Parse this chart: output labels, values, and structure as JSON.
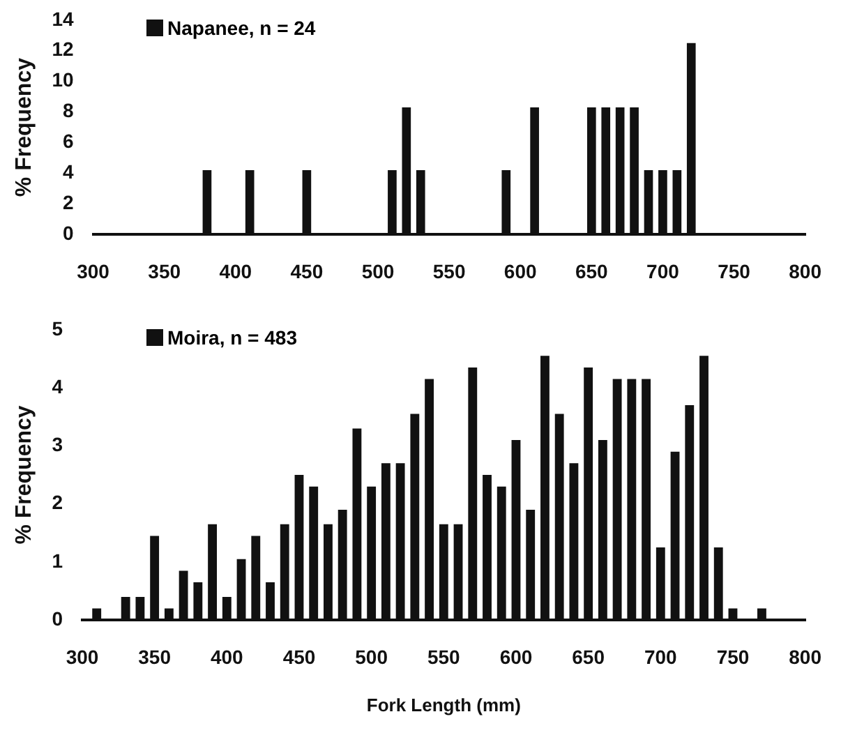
{
  "chart_data": [
    {
      "type": "bar",
      "ylabel": "% Frequency",
      "legend": "top left",
      "grid": false,
      "xlim": [
        300,
        800
      ],
      "xticks": [
        300,
        350,
        400,
        450,
        500,
        550,
        600,
        650,
        700,
        750,
        800
      ],
      "ylim": [
        0,
        14
      ],
      "yticks": [
        0,
        2,
        4,
        6,
        8,
        10,
        12,
        14
      ],
      "x": [
        380,
        410,
        450,
        510,
        520,
        530,
        590,
        610,
        650,
        660,
        670,
        680,
        690,
        700,
        710,
        720
      ],
      "series": [
        {
          "name": "Napanee, n = 24",
          "color": "#111111",
          "values": [
            4.2,
            4.2,
            4.2,
            4.2,
            8.3,
            4.2,
            4.2,
            8.3,
            8.3,
            8.3,
            8.3,
            8.3,
            4.2,
            4.2,
            4.2,
            12.5
          ]
        }
      ]
    },
    {
      "type": "bar",
      "xlabel": "Fork Length (mm)",
      "ylabel": "% Frequency",
      "legend": "top left",
      "grid": false,
      "xlim": [
        300,
        800
      ],
      "xticks": [
        300,
        350,
        400,
        450,
        500,
        550,
        600,
        650,
        700,
        750,
        800
      ],
      "ylim": [
        0,
        5
      ],
      "yticks": [
        0,
        1,
        2,
        3,
        4,
        5
      ],
      "x": [
        310,
        320,
        330,
        340,
        350,
        360,
        370,
        380,
        390,
        400,
        410,
        420,
        430,
        440,
        450,
        460,
        470,
        480,
        490,
        500,
        510,
        520,
        530,
        540,
        550,
        560,
        570,
        580,
        590,
        600,
        610,
        620,
        630,
        640,
        650,
        660,
        670,
        680,
        690,
        700,
        710,
        720,
        730,
        740,
        750,
        760,
        770
      ],
      "series": [
        {
          "name": "Moira, n = 483",
          "color": "#111111",
          "values": [
            0.2,
            0,
            0.4,
            0.4,
            1.45,
            0.2,
            0.85,
            0.65,
            1.65,
            0.4,
            1.05,
            1.45,
            0.65,
            1.65,
            2.5,
            2.3,
            1.65,
            1.9,
            3.3,
            2.3,
            2.7,
            2.7,
            3.55,
            4.15,
            1.65,
            1.65,
            4.35,
            2.5,
            2.3,
            3.1,
            1.9,
            4.55,
            3.55,
            2.7,
            4.35,
            3.1,
            4.15,
            4.15,
            4.15,
            1.25,
            2.9,
            3.7,
            4.55,
            1.25,
            0.2,
            0,
            0.2
          ]
        }
      ]
    }
  ]
}
